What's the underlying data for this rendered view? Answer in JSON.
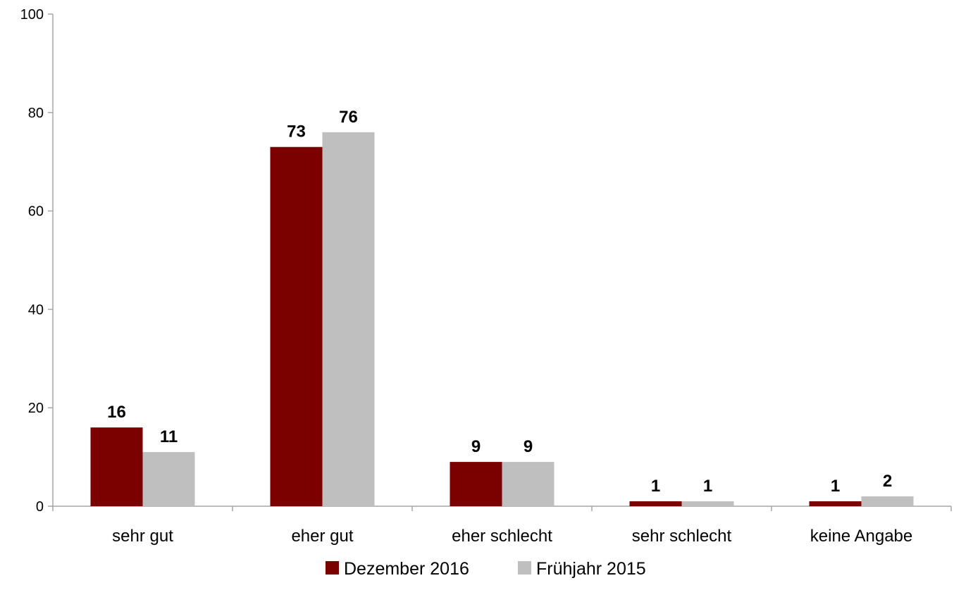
{
  "chart_data": {
    "type": "bar",
    "categories": [
      "sehr gut",
      "eher gut",
      "eher schlecht",
      "sehr schlecht",
      "keine Angabe"
    ],
    "series": [
      {
        "name": "Dezember 2016",
        "values": [
          16,
          73,
          9,
          1,
          1
        ],
        "color": "#7b0000"
      },
      {
        "name": "Frühjahr 2015",
        "values": [
          11,
          76,
          9,
          1,
          2
        ],
        "color": "#bfbfbf"
      }
    ],
    "ylim": [
      0,
      100
    ],
    "yticks": [
      "0",
      "20",
      "40",
      "60",
      "80",
      "100"
    ],
    "grid": false,
    "legend_position": "bottom"
  }
}
